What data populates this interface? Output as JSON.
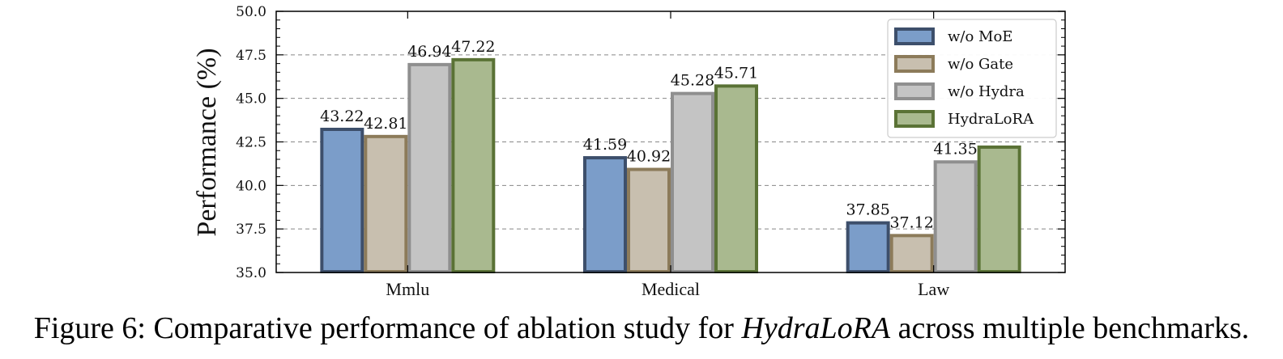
{
  "chart_data": {
    "type": "bar",
    "categories": [
      "Mmlu",
      "Medical",
      "Law"
    ],
    "series": [
      {
        "name": "w/o MoE",
        "values": [
          43.22,
          41.59,
          37.85
        ],
        "labels": [
          "43.22",
          "41.59",
          "37.85"
        ],
        "fill": "#7b9dc9",
        "stroke": "#3d4f6b"
      },
      {
        "name": "w/o Gate",
        "values": [
          42.81,
          40.92,
          37.12
        ],
        "labels": [
          "42.81",
          "40.92",
          "37.12"
        ],
        "fill": "#c8bfaf",
        "stroke": "#8c7b5a"
      },
      {
        "name": "w/o Hydra",
        "values": [
          46.94,
          45.28,
          41.35
        ],
        "labels": [
          "46.94",
          "45.28",
          "41.35"
        ],
        "fill": "#c4c4c4",
        "stroke": "#8f8f8f"
      },
      {
        "name": "HydraLoRA",
        "values": [
          47.22,
          45.71,
          42.2
        ],
        "labels": [
          "47.22",
          "45.71",
          ""
        ],
        "fill": "#a9b98f",
        "stroke": "#5a7235"
      }
    ],
    "ylabel": "Performance (%)",
    "ylim": [
      35.0,
      50.0
    ],
    "yticks": [
      "35.0",
      "37.5",
      "40.0",
      "42.5",
      "45.0",
      "47.5",
      "50.0"
    ],
    "grid": true,
    "legend_position": "top-right"
  },
  "caption": {
    "prefix": "Figure 6: Comparative performance of ablation study for ",
    "emph": "HydraLoRA",
    "suffix": " across multiple benchmarks."
  }
}
